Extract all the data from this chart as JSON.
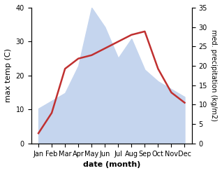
{
  "months": [
    "Jan",
    "Feb",
    "Mar",
    "Apr",
    "May",
    "Jun",
    "Jul",
    "Aug",
    "Sep",
    "Oct",
    "Nov",
    "Dec"
  ],
  "temperature": [
    3,
    9,
    22,
    25,
    26,
    28,
    30,
    32,
    33,
    22,
    15,
    12
  ],
  "precipitation": [
    9,
    11,
    13,
    20,
    35,
    30,
    22,
    27,
    19,
    16,
    14,
    12
  ],
  "temp_color": "#c03030",
  "precip_color_fill": "#c5d5ee",
  "ylabel_left": "max temp (C)",
  "ylabel_right": "med. precipitation (kg/m2)",
  "xlabel": "date (month)",
  "ylim_left": [
    0,
    40
  ],
  "ylim_right": [
    0,
    35
  ],
  "yticks_left": [
    0,
    10,
    20,
    30,
    40
  ],
  "yticks_right": [
    0,
    5,
    10,
    15,
    20,
    25,
    30,
    35
  ],
  "temp_linewidth": 1.8,
  "background_color": "#ffffff"
}
